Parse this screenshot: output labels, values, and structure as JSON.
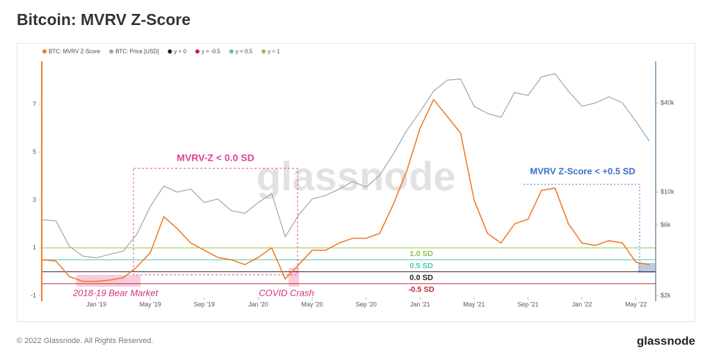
{
  "header": {
    "title": "Bitcoin: MVRV Z-Score"
  },
  "chart_data": {
    "type": "line",
    "x": [
      "2018-09",
      "2018-10",
      "2018-11",
      "2018-12",
      "2019-01",
      "2019-02",
      "2019-03",
      "2019-04",
      "2019-05",
      "2019-06",
      "2019-07",
      "2019-08",
      "2019-09",
      "2019-10",
      "2019-11",
      "2019-12",
      "2020-01",
      "2020-02",
      "2020-03",
      "2020-04",
      "2020-05",
      "2020-06",
      "2020-07",
      "2020-08",
      "2020-09",
      "2020-10",
      "2020-11",
      "2020-12",
      "2021-01",
      "2021-02",
      "2021-03",
      "2021-04",
      "2021-05",
      "2021-06",
      "2021-07",
      "2021-08",
      "2021-09",
      "2021-10",
      "2021-11",
      "2021-12",
      "2022-01",
      "2022-02",
      "2022-03",
      "2022-04",
      "2022-05",
      "2022-06"
    ],
    "series": [
      {
        "name": "BTC: MVRV Z-Score",
        "color": "#f07a26",
        "values": [
          0.5,
          0.45,
          -0.2,
          -0.4,
          -0.4,
          -0.35,
          -0.25,
          0.2,
          0.8,
          2.3,
          1.8,
          1.2,
          0.9,
          0.6,
          0.5,
          0.3,
          0.6,
          1.0,
          -0.3,
          0.3,
          0.9,
          0.9,
          1.2,
          1.4,
          1.4,
          1.6,
          2.8,
          4.2,
          6.0,
          7.2,
          6.5,
          5.8,
          3.0,
          1.6,
          1.2,
          2.0,
          2.2,
          3.4,
          3.5,
          2.0,
          1.2,
          1.1,
          1.3,
          1.2,
          0.4,
          0.3
        ]
      },
      {
        "name": "BTC: Price [USD]",
        "color": "#9aa3ad",
        "axis": "y2",
        "values": [
          6500,
          6400,
          4300,
          3700,
          3600,
          3800,
          4000,
          5200,
          8000,
          11000,
          10000,
          10500,
          8500,
          9000,
          7500,
          7200,
          8500,
          9800,
          5000,
          7000,
          9000,
          9500,
          10500,
          11800,
          10800,
          13000,
          18000,
          26000,
          35000,
          48000,
          57000,
          58000,
          38000,
          34000,
          32000,
          47000,
          45000,
          60000,
          63000,
          48000,
          38000,
          40000,
          44000,
          40000,
          30000,
          22000
        ]
      }
    ],
    "reference_lines": [
      {
        "name": "y = 0",
        "value": 0,
        "color": "#222222",
        "label": "0.0 SD"
      },
      {
        "name": "y = -0.5",
        "value": -0.5,
        "color": "#c0283a",
        "label": "-0.5 SD"
      },
      {
        "name": "y = 0.5",
        "value": 0.5,
        "color": "#4cc9b0",
        "label": "0.5 SD"
      },
      {
        "name": "y = 1",
        "value": 1,
        "color": "#8bc34a",
        "label": "1.0 SD"
      }
    ],
    "xlim": [
      "2018-09",
      "2022-06"
    ],
    "xticks": [
      {
        "value": "2019-01",
        "label": "Jan '19"
      },
      {
        "value": "2019-05",
        "label": "May '19"
      },
      {
        "value": "2019-09",
        "label": "Sep '19"
      },
      {
        "value": "2020-01",
        "label": "Jan '20"
      },
      {
        "value": "2020-05",
        "label": "May '20"
      },
      {
        "value": "2020-09",
        "label": "Sep '20"
      },
      {
        "value": "2021-01",
        "label": "Jan '21"
      },
      {
        "value": "2021-05",
        "label": "May '21"
      },
      {
        "value": "2021-09",
        "label": "Sep '21"
      },
      {
        "value": "2022-01",
        "label": "Jan '22"
      },
      {
        "value": "2022-05",
        "label": "May '22"
      }
    ],
    "ylim": [
      -1,
      8.8
    ],
    "yticks": [
      -1,
      1,
      3,
      5,
      7
    ],
    "y2lim": [
      2000,
      76500
    ],
    "y2ticks": [
      {
        "value": 2000,
        "label": "$2k"
      },
      {
        "value": 6000,
        "label": "$6k"
      },
      {
        "value": 10000,
        "label": "$10k"
      },
      {
        "value": 40000,
        "label": "$40k"
      }
    ],
    "y2_log": true,
    "annotations": {
      "mvrv_below_zero": "MVRV-Z < 0.0 SD",
      "mvrv_below_half": "MVRV Z-Score < +0.5 SD",
      "bear_market": "2018-19 Bear Market",
      "covid": "COVID Crash"
    },
    "watermark": "glassnode"
  },
  "footer": {
    "copyright": "© 2022 Glassnode. All Rights Reserved.",
    "logo": "glassnode"
  }
}
